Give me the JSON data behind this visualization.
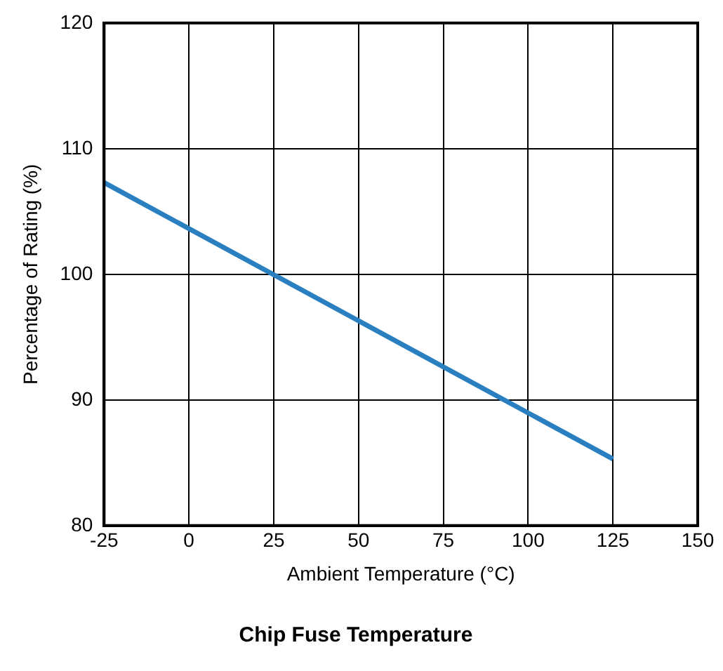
{
  "chart_data": {
    "type": "line",
    "title": "Chip Fuse Temperature",
    "xlabel": "Ambient Temperature (°C)",
    "ylabel": "Percentage of Rating (%)",
    "x": [
      -25,
      125
    ],
    "series": [
      {
        "color": "#2a7fc1",
        "values": [
          107.3,
          85.3
        ]
      }
    ],
    "xlim": [
      -25,
      150
    ],
    "ylim": [
      80,
      120
    ],
    "xticks": [
      -25,
      0,
      25,
      50,
      75,
      100,
      125,
      150
    ],
    "yticks": [
      80,
      90,
      100,
      110,
      120
    ],
    "grid": true
  }
}
